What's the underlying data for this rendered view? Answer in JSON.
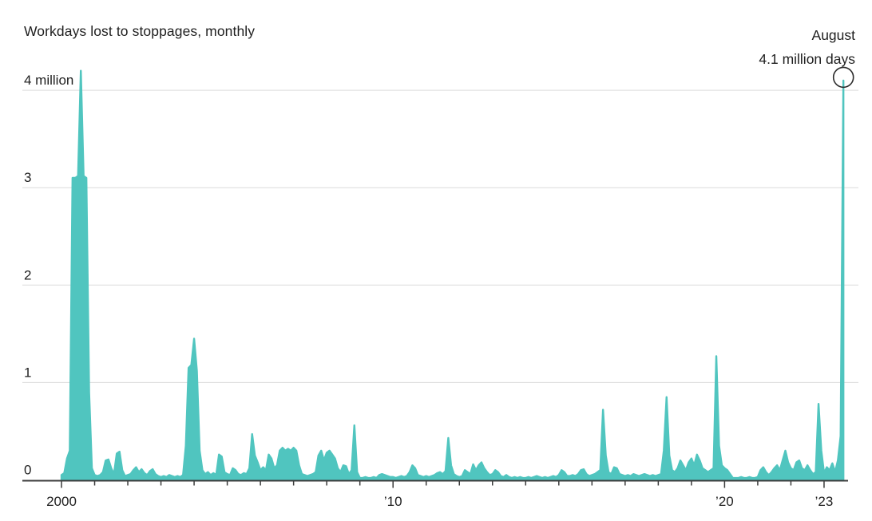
{
  "title": "Workdays lost to stoppages, monthly",
  "annotation": {
    "line1": "August",
    "line2": "4.1 million days"
  },
  "colors": {
    "area": "#50c5bf",
    "grid": "#dcdcdc",
    "axis": "#3b3b3b",
    "text": "#1f1f1f",
    "highlight_circle": "#2b2b2b"
  },
  "chart_data": {
    "type": "area",
    "title": "Workdays lost to stoppages, monthly",
    "unit": "million days",
    "frequency": "monthly",
    "x_start": "2000-01",
    "x_end": "2023-08",
    "ylim": [
      0,
      4.3
    ],
    "grid": true,
    "legend": "none",
    "y_ticks": [
      {
        "value": 4,
        "label": "4 million"
      },
      {
        "value": 3,
        "label": "3"
      },
      {
        "value": 2,
        "label": "2"
      },
      {
        "value": 1,
        "label": "1"
      },
      {
        "value": 0,
        "label": "0"
      }
    ],
    "x_tick_labels": [
      {
        "year": 2000,
        "label": "2000"
      },
      {
        "year": 2010,
        "label": "’10"
      },
      {
        "year": 2020,
        "label": "’20"
      },
      {
        "year": 2023,
        "label": "’23"
      }
    ],
    "minor_tick_every_years": 1,
    "highlight": {
      "month": "2023-08",
      "value": 4.1,
      "label": "August",
      "value_label": "4.1 million days"
    },
    "series_monthly": [
      {
        "year": 2000,
        "values": [
          0.05,
          0.07,
          0.22,
          0.3,
          3.1,
          3.1,
          3.12,
          4.2,
          3.12,
          3.1,
          0.9,
          0.12
        ]
      },
      {
        "year": 2001,
        "values": [
          0.05,
          0.04,
          0.05,
          0.08,
          0.2,
          0.21,
          0.12,
          0.06,
          0.27,
          0.29,
          0.1,
          0.04
        ]
      },
      {
        "year": 2002,
        "values": [
          0.05,
          0.06,
          0.1,
          0.13,
          0.08,
          0.11,
          0.07,
          0.05,
          0.09,
          0.11,
          0.06,
          0.04
        ]
      },
      {
        "year": 2003,
        "values": [
          0.03,
          0.04,
          0.03,
          0.05,
          0.04,
          0.03,
          0.04,
          0.03,
          0.05,
          0.35,
          1.15,
          1.18
        ]
      },
      {
        "year": 2004,
        "values": [
          1.45,
          1.12,
          0.3,
          0.1,
          0.06,
          0.08,
          0.05,
          0.07,
          0.05,
          0.26,
          0.24,
          0.08
        ]
      },
      {
        "year": 2005,
        "values": [
          0.06,
          0.05,
          0.12,
          0.1,
          0.06,
          0.05,
          0.07,
          0.06,
          0.12,
          0.47,
          0.25,
          0.18
        ]
      },
      {
        "year": 2006,
        "values": [
          0.1,
          0.13,
          0.1,
          0.26,
          0.22,
          0.12,
          0.15,
          0.3,
          0.33,
          0.3,
          0.32,
          0.3
        ]
      },
      {
        "year": 2007,
        "values": [
          0.33,
          0.3,
          0.15,
          0.06,
          0.05,
          0.04,
          0.05,
          0.06,
          0.08,
          0.25,
          0.3,
          0.2
        ]
      },
      {
        "year": 2008,
        "values": [
          0.28,
          0.3,
          0.26,
          0.22,
          0.12,
          0.08,
          0.15,
          0.14,
          0.06,
          0.1,
          0.56,
          0.08
        ]
      },
      {
        "year": 2009,
        "values": [
          0.02,
          0.02,
          0.03,
          0.02,
          0.02,
          0.03,
          0.02,
          0.05,
          0.06,
          0.05,
          0.04,
          0.03
        ]
      },
      {
        "year": 2010,
        "values": [
          0.03,
          0.02,
          0.03,
          0.04,
          0.03,
          0.04,
          0.08,
          0.15,
          0.12,
          0.05,
          0.04,
          0.03
        ]
      },
      {
        "year": 2011,
        "values": [
          0.04,
          0.03,
          0.04,
          0.05,
          0.07,
          0.08,
          0.06,
          0.09,
          0.43,
          0.15,
          0.06,
          0.04
        ]
      },
      {
        "year": 2012,
        "values": [
          0.03,
          0.04,
          0.1,
          0.08,
          0.06,
          0.16,
          0.1,
          0.15,
          0.18,
          0.12,
          0.08,
          0.05
        ]
      },
      {
        "year": 2013,
        "values": [
          0.06,
          0.1,
          0.08,
          0.04,
          0.03,
          0.05,
          0.03,
          0.02,
          0.03,
          0.02,
          0.03,
          0.02
        ]
      },
      {
        "year": 2014,
        "values": [
          0.02,
          0.03,
          0.02,
          0.03,
          0.04,
          0.03,
          0.02,
          0.03,
          0.02,
          0.03,
          0.04,
          0.03
        ]
      },
      {
        "year": 2015,
        "values": [
          0.05,
          0.1,
          0.08,
          0.04,
          0.04,
          0.05,
          0.04,
          0.06,
          0.1,
          0.11,
          0.06,
          0.04
        ]
      },
      {
        "year": 2016,
        "values": [
          0.05,
          0.06,
          0.08,
          0.1,
          0.72,
          0.25,
          0.08,
          0.06,
          0.13,
          0.12,
          0.06,
          0.05
        ]
      },
      {
        "year": 2017,
        "values": [
          0.04,
          0.05,
          0.04,
          0.06,
          0.05,
          0.04,
          0.05,
          0.06,
          0.05,
          0.04,
          0.05,
          0.04
        ]
      },
      {
        "year": 2018,
        "values": [
          0.05,
          0.06,
          0.3,
          0.85,
          0.25,
          0.1,
          0.08,
          0.12,
          0.2,
          0.15,
          0.1,
          0.18
        ]
      },
      {
        "year": 2019,
        "values": [
          0.22,
          0.15,
          0.26,
          0.2,
          0.12,
          0.1,
          0.08,
          0.1,
          0.12,
          1.27,
          0.35,
          0.15
        ]
      },
      {
        "year": 2020,
        "values": [
          0.12,
          0.1,
          0.06,
          0.02,
          0.02,
          0.02,
          0.03,
          0.02,
          0.02,
          0.03,
          0.02,
          0.02
        ]
      },
      {
        "year": 2021,
        "values": [
          0.03,
          0.1,
          0.13,
          0.08,
          0.05,
          0.08,
          0.12,
          0.15,
          0.1,
          0.2,
          0.3,
          0.18
        ]
      },
      {
        "year": 2022,
        "values": [
          0.12,
          0.1,
          0.18,
          0.2,
          0.12,
          0.1,
          0.15,
          0.1,
          0.06,
          0.08,
          0.78,
          0.3
        ]
      },
      {
        "year": 2023,
        "values": [
          0.07,
          0.13,
          0.1,
          0.17,
          0.08,
          0.2,
          0.45,
          4.1
        ]
      }
    ]
  }
}
